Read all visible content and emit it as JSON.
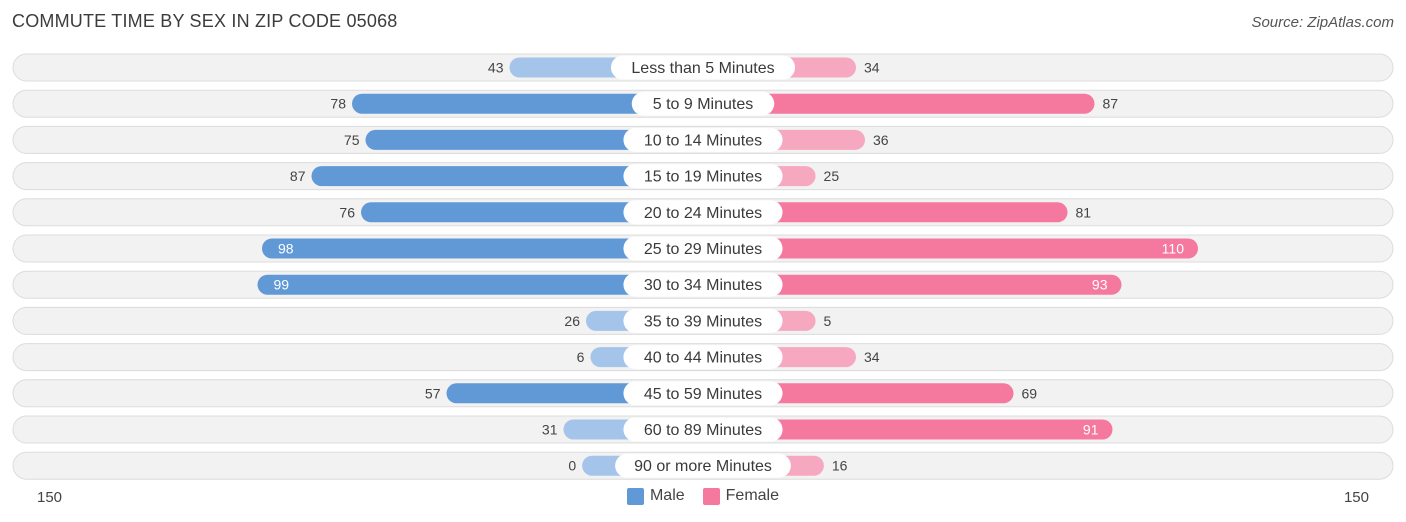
{
  "title": "COMMUTE TIME BY SEX IN ZIP CODE 05068",
  "source": "Source: ZipAtlas.com",
  "colors": {
    "male_strong": "#6199d7",
    "male_light": "#a5c4ea",
    "female_strong": "#f5799f",
    "female_light": "#f7a8c1",
    "row_bg": "#f2f2f2",
    "row_border": "#dcdcdc"
  },
  "legend": {
    "male": "Male",
    "female": "Female"
  },
  "axis": {
    "left_label": "150",
    "right_label": "150"
  },
  "chart_data": {
    "type": "bar",
    "orientation": "horizontal-diverging",
    "categories": [
      "Less than 5 Minutes",
      "5 to 9 Minutes",
      "10 to 14 Minutes",
      "15 to 19 Minutes",
      "20 to 24 Minutes",
      "25 to 29 Minutes",
      "30 to 34 Minutes",
      "35 to 39 Minutes",
      "40 to 44 Minutes",
      "45 to 59 Minutes",
      "60 to 89 Minutes",
      "90 or more Minutes"
    ],
    "series": [
      {
        "name": "Male",
        "values": [
          43,
          78,
          75,
          87,
          76,
          98,
          99,
          26,
          6,
          57,
          31,
          0
        ]
      },
      {
        "name": "Female",
        "values": [
          34,
          87,
          36,
          25,
          81,
          110,
          93,
          5,
          34,
          69,
          91,
          16
        ]
      }
    ],
    "xlim": [
      -150,
      150
    ],
    "legend_position": "bottom-center"
  }
}
